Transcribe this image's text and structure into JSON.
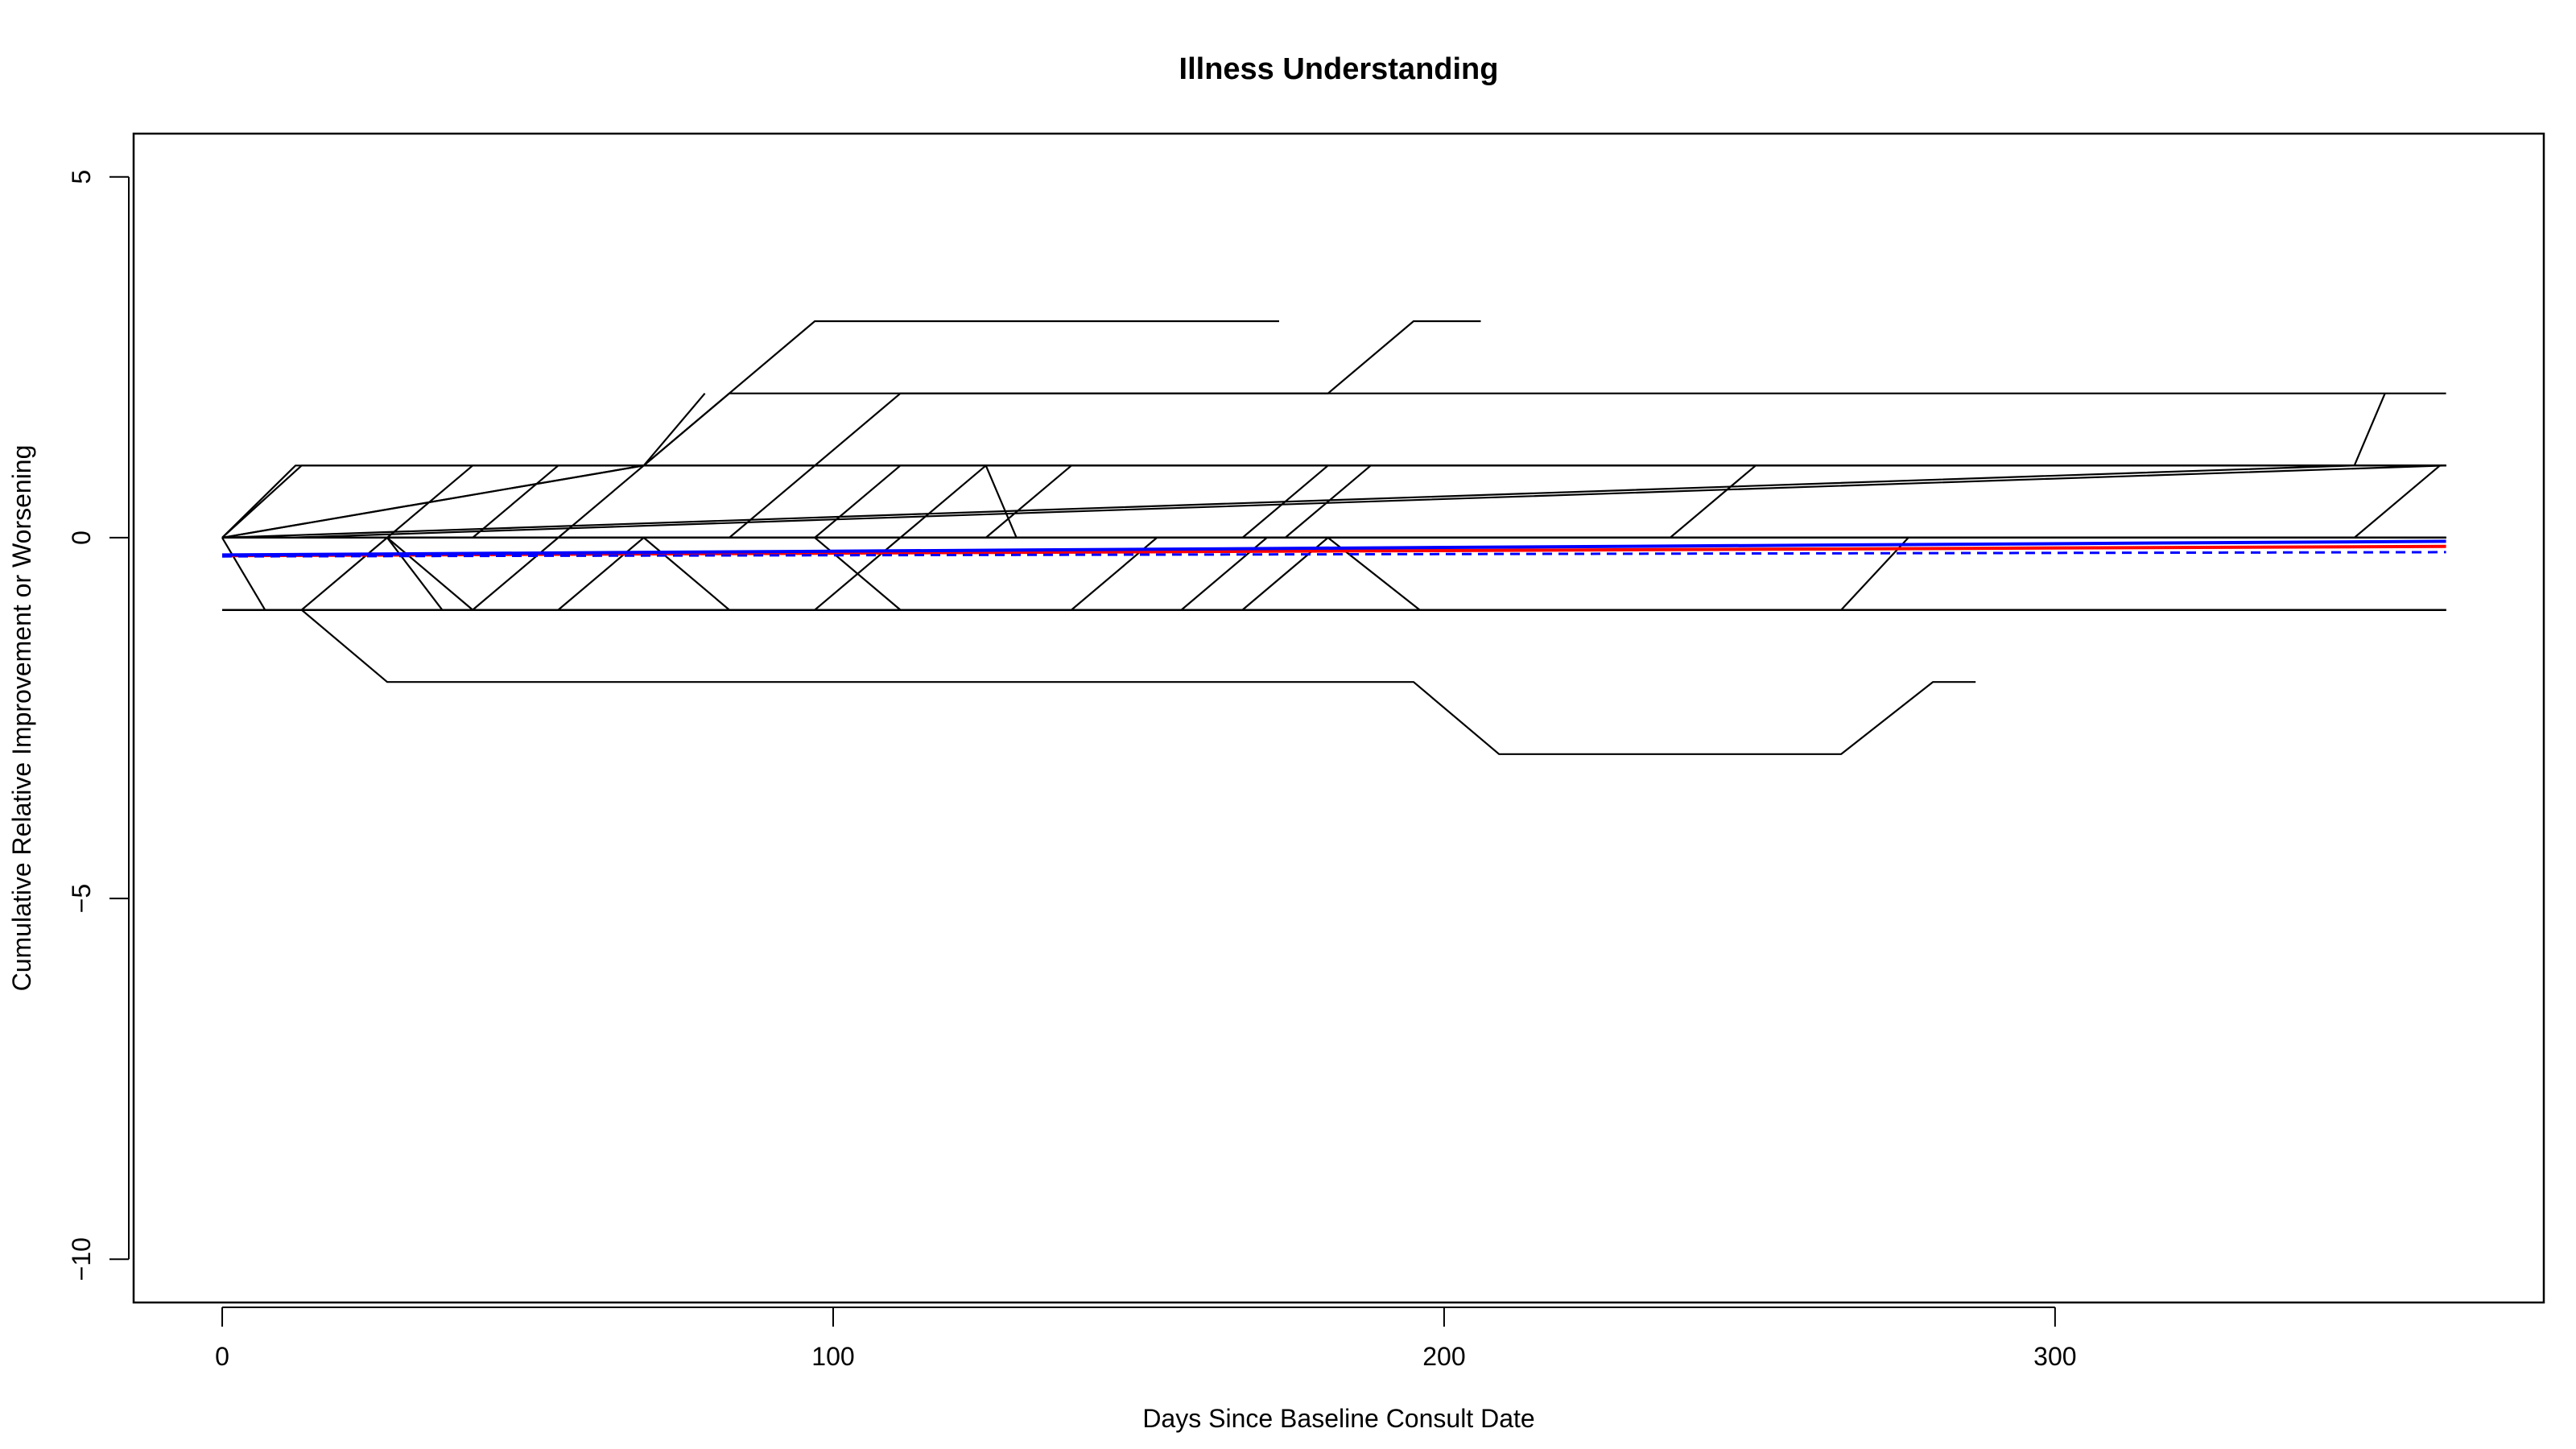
{
  "chart_data": {
    "type": "line",
    "title": "Illness Understanding",
    "xlabel": "Days Since Baseline Consult Date",
    "ylabel": "Cumulative Relative Improvement or Worsening",
    "xlim": [
      -14.5,
      380
    ],
    "ylim": [
      -10.6,
      5.6
    ],
    "x_ticks": [
      0,
      100,
      200,
      300
    ],
    "y_ticks": [
      -10,
      -5,
      0,
      5
    ],
    "grid": false,
    "series": [
      {
        "x": [
          0,
          12,
          364
        ],
        "y": [
          0,
          1,
          1
        ]
      },
      {
        "x": [
          0,
          13,
          17,
          364
        ],
        "y": [
          0,
          1,
          1,
          1
        ]
      },
      {
        "x": [
          0,
          27,
          41,
          364
        ],
        "y": [
          0,
          0,
          1,
          1
        ]
      },
      {
        "x": [
          0,
          41,
          55,
          364
        ],
        "y": [
          0,
          0,
          1,
          1
        ]
      },
      {
        "x": [
          0,
          55,
          69,
          97,
          173
        ],
        "y": [
          0,
          0,
          1,
          3,
          3
        ]
      },
      {
        "x": [
          0,
          69,
          79
        ],
        "y": [
          0,
          1,
          2
        ]
      },
      {
        "x": [
          0,
          69,
          83,
          181,
          195,
          206
        ],
        "y": [
          0,
          1,
          2,
          2,
          3,
          3
        ]
      },
      {
        "x": [
          0,
          83,
          111,
          364
        ],
        "y": [
          0,
          0,
          2,
          2
        ]
      },
      {
        "x": [
          0,
          97,
          111,
          364
        ],
        "y": [
          0,
          0,
          1,
          1
        ]
      },
      {
        "x": [
          0,
          111,
          125,
          130,
          364
        ],
        "y": [
          0,
          0,
          1,
          0,
          0
        ]
      },
      {
        "x": [
          0,
          125,
          139,
          364
        ],
        "y": [
          0,
          0,
          1,
          1
        ]
      },
      {
        "x": [
          0,
          167,
          181,
          364
        ],
        "y": [
          0,
          0,
          1,
          1
        ]
      },
      {
        "x": [
          0,
          174,
          188,
          364
        ],
        "y": [
          0,
          0,
          1,
          1
        ]
      },
      {
        "x": [
          0,
          237,
          251,
          364
        ],
        "y": [
          0,
          0,
          1,
          1
        ]
      },
      {
        "x": [
          0,
          349,
          354
        ],
        "y": [
          0,
          1,
          2
        ]
      },
      {
        "x": [
          0,
          349,
          363
        ],
        "y": [
          0,
          0,
          1
        ]
      },
      {
        "x": [
          0,
          364
        ],
        "y": [
          0,
          0
        ]
      },
      {
        "x": [
          0,
          7,
          364
        ],
        "y": [
          0,
          -1,
          -1
        ]
      },
      {
        "x": [
          0,
          11,
          364
        ],
        "y": [
          0,
          0,
          1
        ]
      },
      {
        "x": [
          0,
          13,
          364
        ],
        "y": [
          -1,
          -1,
          -1
        ]
      },
      {
        "x": [
          0,
          13,
          27,
          195,
          209,
          265,
          280,
          287
        ],
        "y": [
          -1,
          -1,
          -2,
          -2,
          -3,
          -3,
          -2,
          -2
        ]
      },
      {
        "x": [
          0,
          13,
          27,
          364
        ],
        "y": [
          -1,
          -1,
          0,
          0
        ]
      },
      {
        "x": [
          0,
          27,
          36,
          364
        ],
        "y": [
          0,
          0,
          -1,
          -1
        ]
      },
      {
        "x": [
          0,
          27,
          41,
          364
        ],
        "y": [
          0,
          0,
          -1,
          -1
        ]
      },
      {
        "x": [
          0,
          41,
          55,
          364
        ],
        "y": [
          -1,
          -1,
          0,
          0
        ]
      },
      {
        "x": [
          0,
          55,
          69,
          364
        ],
        "y": [
          -1,
          -1,
          0,
          0
        ]
      },
      {
        "x": [
          0,
          69,
          83,
          364
        ],
        "y": [
          0,
          0,
          -1,
          -1
        ]
      },
      {
        "x": [
          0,
          97,
          111,
          364
        ],
        "y": [
          0,
          0,
          -1,
          -1
        ]
      },
      {
        "x": [
          0,
          97,
          111,
          364
        ],
        "y": [
          -1,
          -1,
          0,
          0
        ]
      },
      {
        "x": [
          0,
          139,
          153,
          364
        ],
        "y": [
          -1,
          -1,
          0,
          0
        ]
      },
      {
        "x": [
          0,
          157,
          171,
          364
        ],
        "y": [
          -1,
          -1,
          0,
          0
        ]
      },
      {
        "x": [
          0,
          167,
          181,
          364
        ],
        "y": [
          -1,
          -1,
          0,
          0
        ]
      },
      {
        "x": [
          0,
          181,
          196,
          364
        ],
        "y": [
          0,
          0,
          -1,
          -1
        ]
      },
      {
        "x": [
          0,
          265,
          276,
          364
        ],
        "y": [
          -1,
          -1,
          0,
          0
        ]
      }
    ],
    "trend_lines": [
      {
        "color": "#ff0000",
        "style": "solid",
        "x": [
          0,
          364
        ],
        "y": [
          -0.25,
          -0.12
        ]
      },
      {
        "color": "#0000ff",
        "style": "solid",
        "x": [
          0,
          364
        ],
        "y": [
          -0.24,
          -0.05
        ]
      },
      {
        "color": "#0000ff",
        "style": "dashed",
        "x": [
          0,
          364
        ],
        "y": [
          -0.26,
          -0.2
        ]
      }
    ]
  }
}
